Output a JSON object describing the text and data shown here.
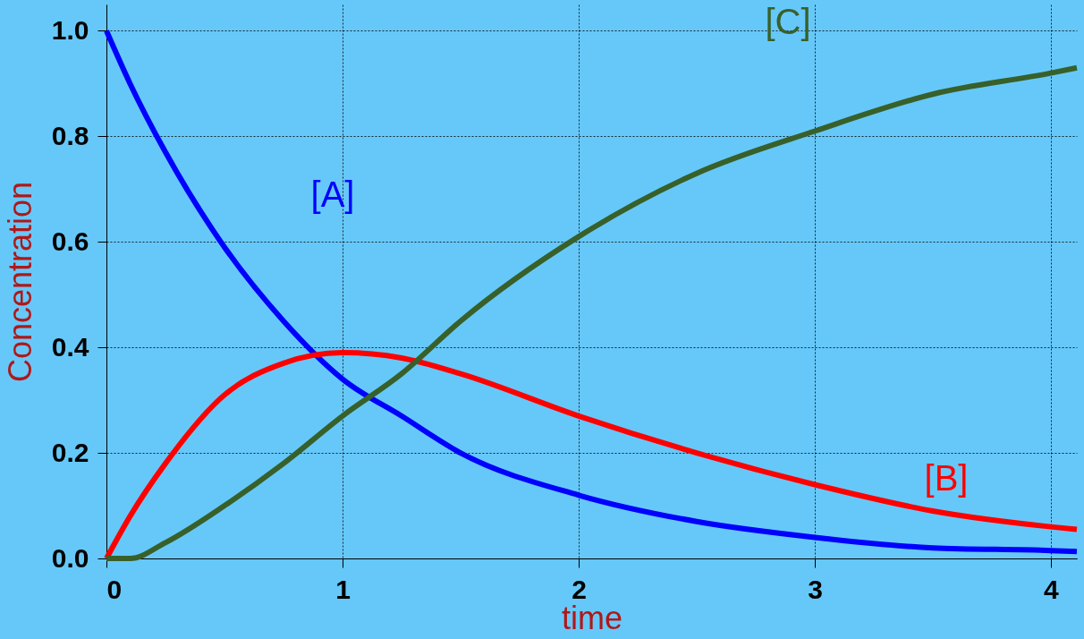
{
  "chart_data": {
    "type": "line",
    "xlabel": "time",
    "ylabel": "Concentration",
    "x": [
      0,
      0.1,
      0.25,
      0.5,
      0.75,
      1,
      1.25,
      1.5,
      2,
      2.5,
      3,
      3.5,
      4,
      4.11
    ],
    "xlim": [
      0,
      4.11
    ],
    "ylim": [
      0,
      1.05
    ],
    "xticks": [
      0,
      1,
      2,
      3,
      4
    ],
    "yticks": [
      {
        "value": 0,
        "label": "0.0"
      },
      0.2,
      0.4,
      0.6,
      0.8,
      {
        "value": 1,
        "label": "1.0"
      }
    ],
    "grid": true,
    "legend": false,
    "series": [
      {
        "name": "[A]",
        "color": "#0000ff",
        "values": [
          1.0,
          0.9,
          0.77,
          0.59,
          0.45,
          0.34,
          0.27,
          0.2,
          0.12,
          0.07,
          0.04,
          0.02,
          0.015,
          0.013
        ]
      },
      {
        "name": "[B]",
        "color": "#ff0000",
        "values": [
          0,
          0.08,
          0.18,
          0.31,
          0.37,
          0.39,
          0.38,
          0.35,
          0.27,
          0.2,
          0.14,
          0.09,
          0.06,
          0.055
        ]
      },
      {
        "name": "[C]",
        "color": "#38602a",
        "values": [
          0,
          0.0,
          0.03,
          0.1,
          0.18,
          0.27,
          0.35,
          0.45,
          0.61,
          0.73,
          0.81,
          0.88,
          0.92,
          0.93
        ]
      }
    ]
  }
}
